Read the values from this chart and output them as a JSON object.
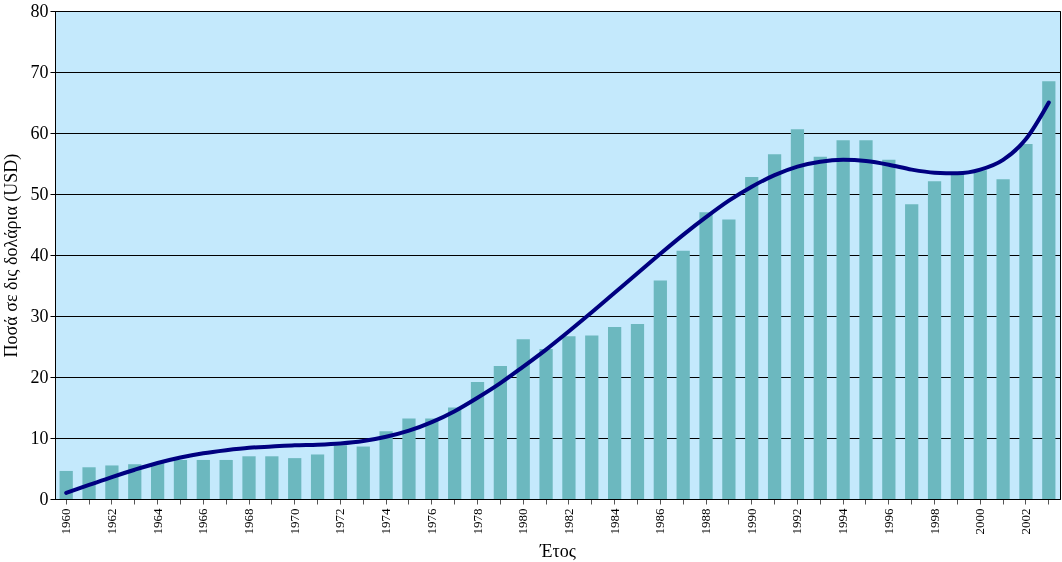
{
  "chart_data": {
    "type": "bar",
    "xlabel": "Έτος",
    "ylabel": "Ποσά σε δις δολάρια (USD)",
    "categories": [
      "1960",
      null,
      "1962",
      null,
      "1964",
      null,
      "1966",
      null,
      "1968",
      null,
      "1970",
      null,
      "1972",
      null,
      "1974",
      null,
      "1976",
      null,
      "1978",
      null,
      "1980",
      null,
      "1982",
      null,
      "1984",
      null,
      "1986",
      null,
      "1988",
      null,
      "1990",
      null,
      "1992",
      null,
      "1994",
      null,
      "1996",
      null,
      "1998",
      null,
      "2000",
      null,
      "2002",
      null
    ],
    "series": [
      {
        "color": "#6cb8bf",
        "values": [
          4.6,
          5.2,
          5.5,
          5.7,
          5.9,
          6.4,
          6.4,
          6.4,
          7.0,
          7.0,
          6.7,
          7.3,
          8.8,
          8.6,
          11.1,
          13.2,
          13.2,
          15.0,
          19.2,
          21.8,
          26.2,
          24.6,
          26.7,
          26.8,
          28.2,
          28.7,
          35.8,
          40.7,
          47.0,
          45.8,
          52.8,
          56.5,
          60.6,
          56.1,
          58.8,
          58.8,
          55.6,
          48.3,
          52.1,
          53.4,
          53.9,
          52.4,
          58.2,
          68.5
        ]
      },
      {
        "type": "line",
        "color": "#000080",
        "values": [
          1.0,
          2.3,
          3.6,
          4.8,
          5.9,
          6.8,
          7.5,
          8.0,
          8.4,
          8.6,
          8.8,
          8.9,
          9.1,
          9.5,
          10.2,
          11.2,
          12.6,
          14.4,
          16.6,
          19.0,
          21.7,
          24.5,
          27.5,
          30.6,
          33.8,
          37.0,
          40.2,
          43.3,
          46.2,
          48.9,
          51.2,
          53.1,
          54.5,
          55.3,
          55.6,
          55.4,
          54.8,
          54.0,
          53.5,
          53.4,
          54.0,
          55.6,
          59.0,
          65.0
        ]
      }
    ],
    "ylim": [
      0,
      80
    ],
    "yticks": [
      0,
      10,
      20,
      30,
      40,
      50,
      60,
      70,
      80
    ],
    "grid": "y",
    "line_style": "solid",
    "marker": "none"
  }
}
